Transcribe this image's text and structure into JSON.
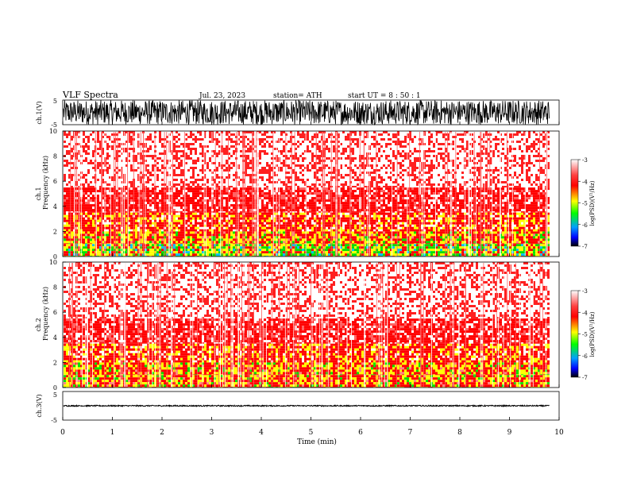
{
  "header": {
    "title": "VLF  Spectra",
    "date": "Jul.  23,  2023",
    "station": "station= ATH",
    "start_ut": "start  UT  =    8  : 50 : 1"
  },
  "chart_data": [
    {
      "type": "line",
      "panel": "ch1-waveform",
      "ylabel": "ch.1(V)",
      "ylim": [
        -5,
        5
      ],
      "yticks": [
        "5",
        "-5"
      ],
      "xlim": [
        0,
        10
      ],
      "color": "#000000",
      "amplitude_range": [
        -5,
        5
      ]
    },
    {
      "type": "heatmap",
      "panel": "ch1-spectrogram",
      "ylabel": "ch.1\nFrequency  (kHz)",
      "ylim": [
        0,
        10
      ],
      "yticks": [
        "0",
        "2",
        "4",
        "6",
        "8",
        "10"
      ],
      "xlim": [
        0,
        9.8
      ],
      "colorbar": {
        "label": "log(PSD)(V²/Hz)",
        "range": [
          -7,
          -3
        ],
        "ticks": [
          "-3",
          "-4",
          "-5",
          "-6",
          "-7"
        ],
        "colors": [
          "#000000",
          "#0000ff",
          "#00ff00",
          "#ffff00",
          "#ff0000",
          "#ffffff"
        ]
      },
      "bands_khz": [
        [
          0,
          1,
          "green-yellow"
        ],
        [
          1,
          2,
          "yellow-red"
        ],
        [
          2,
          3.5,
          "red-yellow"
        ],
        [
          3.5,
          5.5,
          "red"
        ],
        [
          5.5,
          10,
          "red-sparse"
        ]
      ]
    },
    {
      "type": "heatmap",
      "panel": "ch2-spectrogram",
      "ylabel": "ch.2\nFrequency  (kHz)",
      "ylim": [
        0,
        10
      ],
      "yticks": [
        "0",
        "2",
        "4",
        "6",
        "8",
        "10"
      ],
      "xlim": [
        0,
        9.8
      ],
      "colorbar": {
        "label": "log(PSD)(V²/Hz)",
        "range": [
          -7,
          -3
        ],
        "ticks": [
          "-3",
          "-4",
          "-5",
          "-6",
          "-7"
        ],
        "colors": [
          "#000000",
          "#0000ff",
          "#00ff00",
          "#ffff00",
          "#ff0000",
          "#ffffff"
        ]
      },
      "bands_khz": [
        [
          0,
          1,
          "yellow-red"
        ],
        [
          1,
          2,
          "yellow-red"
        ],
        [
          2,
          3.5,
          "red-yellow"
        ],
        [
          3.5,
          5.5,
          "red"
        ],
        [
          5.5,
          10,
          "red-sparse"
        ]
      ]
    },
    {
      "type": "line",
      "panel": "ch3-waveform",
      "ylabel": "ch.3(V)",
      "ylim": [
        -5,
        5
      ],
      "yticks": [
        "5",
        "-5"
      ],
      "xlim": [
        0,
        10
      ],
      "color": "#000000",
      "amplitude_range": [
        -0.2,
        0.2
      ]
    }
  ],
  "xaxis": {
    "label": "Time  (min)",
    "ticks": [
      "0",
      "1",
      "2",
      "3",
      "4",
      "5",
      "6",
      "7",
      "8",
      "9",
      "10"
    ],
    "range": [
      0,
      10
    ]
  }
}
